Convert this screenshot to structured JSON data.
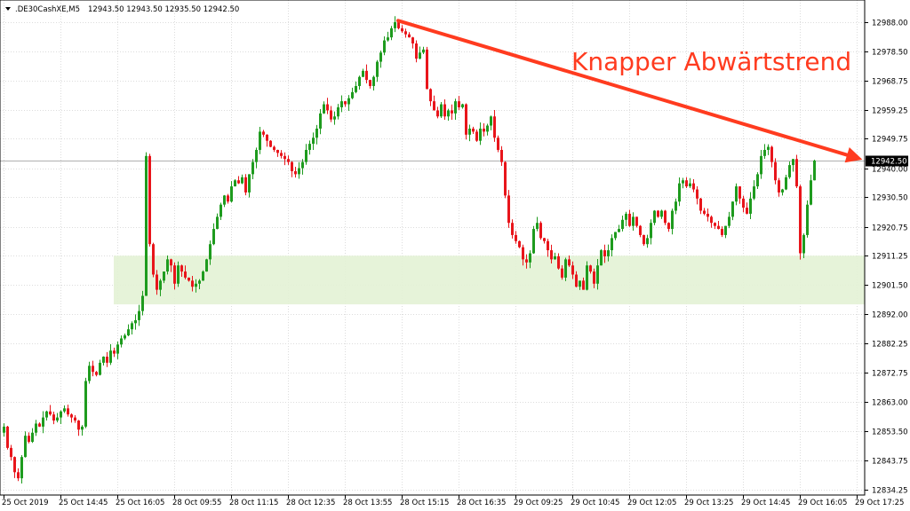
{
  "header": {
    "symbol": ".DE30CashXE,M5",
    "ohlc": "12943.50 12943.50 12935.50 12942.50"
  },
  "annotation": {
    "text": "Knapper Abwärtstrend",
    "color": "#ff3b1f"
  },
  "colors": {
    "bull": "#1e9b1e",
    "bear": "#e8151b",
    "zone": "#e3f2d5",
    "grid": "#dcdcdc",
    "axis": "#000000",
    "price_marker_bg": "#000000",
    "price_marker_text": "#ffffff"
  },
  "chart_data": {
    "type": "candlestick",
    "symbol": ".DE30CashXE",
    "timeframe": "M5",
    "y_ticks": [
      "12988.00",
      "12978.50",
      "12968.75",
      "12959.25",
      "12949.75",
      "12940.00",
      "12930.50",
      "12920.75",
      "12911.25",
      "12901.50",
      "12892.00",
      "12882.25",
      "12872.75",
      "12863.00",
      "12853.50",
      "12843.75",
      "12834.25"
    ],
    "ylim": [
      12834.25,
      12988.0
    ],
    "x_ticks": [
      "25 Oct 2019",
      "25 Oct 14:45",
      "25 Oct 16:05",
      "28 Oct 09:55",
      "28 Oct 11:15",
      "28 Oct 12:35",
      "28 Oct 13:55",
      "28 Oct 15:15",
      "28 Oct 16:35",
      "29 Oct 09:25",
      "29 Oct 10:45",
      "29 Oct 12:05",
      "29 Oct 13:25",
      "29 Oct 14:45",
      "29 Oct 16:05",
      "29 Oct 17:25"
    ],
    "last_price": "12942.50",
    "support_zone": [
      12895.2,
      12911.2
    ],
    "trendline": {
      "from_bar": 111,
      "from_price": 12988.5,
      "to_price": 12944.0
    },
    "closes": [
      12855,
      12848,
      12845,
      12840,
      12838,
      12845,
      12852,
      12850,
      12853,
      12856,
      12855,
      12858,
      12860,
      12859,
      12857,
      12858,
      12860,
      12861,
      12859,
      12858,
      12857,
      12854,
      12855,
      12870,
      12875,
      12873,
      12872,
      12876,
      12878,
      12876,
      12880,
      12879,
      12882,
      12884,
      12885,
      12887,
      12889,
      12890,
      12893,
      12898,
      12944,
      12915,
      12905,
      12900,
      12903,
      12906,
      12910,
      12908,
      12902,
      12908,
      12906,
      12904,
      12903,
      12901,
      12902,
      12903,
      12906,
      12910,
      12915,
      12920,
      12924,
      12928,
      12931,
      12929,
      12934,
      12936,
      12935,
      12937,
      12932,
      12938,
      12942,
      12946,
      12952,
      12951,
      12949,
      12947,
      12946,
      12945,
      12944,
      12943,
      12942,
      12939,
      12938,
      12940,
      12942,
      12946,
      12948,
      12950,
      12953,
      12958,
      12961,
      12959,
      12956,
      12957,
      12960,
      12962,
      12961,
      12963,
      12965,
      12967,
      12970,
      12972,
      12969,
      12967,
      12970,
      12975,
      12978,
      12982,
      12983,
      12986,
      12988,
      12986,
      12985,
      12984,
      12983,
      12981,
      12976,
      12978,
      12979,
      12966,
      12962,
      12959,
      12957,
      12961,
      12957,
      12959,
      12958,
      12962,
      12960,
      12961,
      12951,
      12953,
      12952,
      12949,
      12953,
      12952,
      12954,
      12957,
      12950,
      12946,
      12942,
      12931,
      12922,
      12918,
      12916,
      12914,
      12910,
      12909,
      12912,
      12920,
      12922,
      12917,
      12916,
      12913,
      12910,
      12911,
      12907,
      12904,
      12910,
      12908,
      12905,
      12901,
      12903,
      12900,
      12908,
      12906,
      12902,
      12908,
      12913,
      12911,
      12913,
      12917,
      12919,
      12920,
      12923,
      12925,
      12921,
      12924,
      12921,
      12918,
      12915,
      12917,
      12922,
      12926,
      12924,
      12926,
      12922,
      12920,
      12926,
      12929,
      12935,
      12936,
      12934,
      12935,
      12933,
      12930,
      12926,
      12925,
      12924,
      12922,
      12921,
      12920,
      12918,
      12921,
      12924,
      12929,
      12934,
      12930,
      12927,
      12925,
      12930,
      12934,
      12938,
      12944,
      12946,
      12947,
      12942,
      12936,
      12932,
      12933,
      12937,
      12941,
      12943,
      12934,
      12912,
      12918,
      12928,
      12936,
      12942.5
    ]
  }
}
